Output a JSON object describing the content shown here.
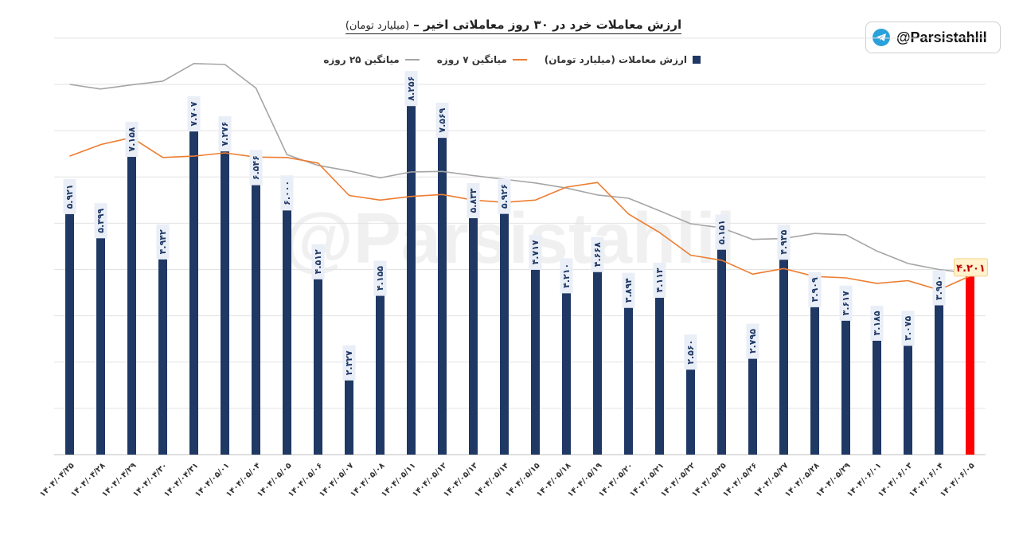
{
  "title": {
    "main": "ارزش معاملات خرد در ۳۰ روز معاملاتی اخیر",
    "unit": "(میلیارد تومان)"
  },
  "brand": {
    "handle": "@Parsistahlil",
    "icon": "telegram-icon",
    "watermark": "@Parsistahlil"
  },
  "legend": {
    "value": "ارزش معاملات (میلیارد تومان)",
    "ma7": "میانگین ۷ روزه",
    "ma25": "میانگین ۲۵ روزه"
  },
  "colors": {
    "bar": "#1f3864",
    "last_bar": "#ff0000",
    "ma7": "#ed7d31",
    "ma25": "#a5a5a5"
  },
  "chart_data": {
    "type": "bar",
    "title": "ارزش معاملات خرد در ۳۰ روز معاملاتی اخیر - (میلیارد تومان)",
    "ylim": [
      0,
      8
    ],
    "grid": true,
    "legend_position": "top-center",
    "categories": [
      "۱۴۰۴/۰۴/۲۵",
      "۱۴۰۴/۰۴/۲۸",
      "۱۴۰۴/۰۴/۲۹",
      "۱۴۰۴/۰۴/۳۰",
      "۱۴۰۴/۰۴/۳۱",
      "۱۴۰۴/۰۵/۰۱",
      "۱۴۰۴/۰۵/۰۴",
      "۱۴۰۴/۰۵/۰۵",
      "۱۴۰۴/۰۵/۰۶",
      "۱۴۰۴/۰۵/۰۷",
      "۱۴۰۴/۰۵/۰۸",
      "۱۴۰۴/۰۵/۱۱",
      "۱۴۰۴/۰۵/۱۲",
      "۱۴۰۴/۰۵/۱۳",
      "۱۴۰۴/۰۵/۱۴",
      "۱۴۰۴/۰۵/۱۵",
      "۱۴۰۴/۰۵/۱۸",
      "۱۴۰۴/۰۵/۱۹",
      "۱۴۰۴/۰۵/۲۰",
      "۱۴۰۴/۰۵/۲۱",
      "۱۴۰۴/۰۵/۲۲",
      "۱۴۰۴/۰۵/۲۵",
      "۱۴۰۴/۰۵/۲۶",
      "۱۴۰۴/۰۵/۲۷",
      "۱۴۰۴/۰۵/۲۸",
      "۱۴۰۴/۰۵/۲۹",
      "۱۴۰۴/۰۶/۰۱",
      "۱۴۰۴/۰۶/۰۳",
      "۱۴۰۴/۰۶/۰۴",
      "۱۴۰۴/۰۶/۰۵"
    ],
    "series": [
      {
        "name": "ارزش معاملات (میلیارد تومان)",
        "kind": "bar",
        "values": [
          5.921,
          5.399,
          7.158,
          4.942,
          7.707,
          7.276,
          6.546,
          6.0,
          4.512,
          2.327,
          4.155,
          8.256,
          7.569,
          5.833,
          5.926,
          4.717,
          4.21,
          4.668,
          3.894,
          4.113,
          2.56,
          5.151,
          2.795,
          4.935,
          3.909,
          3.617,
          3.185,
          3.075,
          3.95,
          4.201
        ],
        "labels": [
          "۵.۹۲۱",
          "۵.۳۹۹",
          "۷.۱۵۸",
          "۴.۹۴۲",
          "۷.۷۰۷",
          "۷.۲۷۶",
          "۶.۵۴۶",
          "۶.۰۰۰",
          "۴.۵۱۲",
          "۲.۳۲۷",
          "۴.۱۵۵",
          "۸.۲۵۶",
          "۷.۵۶۹",
          "۵.۸۳۳",
          "۵.۹۲۶",
          "۴.۷۱۷",
          "۴.۲۱۰",
          "۴.۶۶۸",
          "۳.۸۹۴",
          "۴.۱۱۳",
          "۲.۵۶۰",
          "۵.۱۵۱",
          "۲.۷۹۵",
          "۴.۹۳۵",
          "۳.۹۰۹",
          "۳.۶۱۷",
          "۳.۱۸۵",
          "۳.۰۷۵",
          "۳.۹۵۰",
          "۴.۲۰۱"
        ]
      },
      {
        "name": "میانگین ۷ روزه",
        "kind": "line",
        "values": [
          6.45,
          6.7,
          6.85,
          6.42,
          6.45,
          6.52,
          6.43,
          6.42,
          6.3,
          5.6,
          5.5,
          5.58,
          5.62,
          5.5,
          5.45,
          5.5,
          5.78,
          5.88,
          5.2,
          4.8,
          4.31,
          4.2,
          3.9,
          4.02,
          3.85,
          3.82,
          3.7,
          3.76,
          3.56,
          3.86
        ]
      },
      {
        "name": "میانگین ۲۵ روزه",
        "kind": "line",
        "values": [
          8.0,
          7.9,
          7.99,
          8.07,
          8.45,
          8.43,
          7.92,
          6.48,
          6.25,
          6.13,
          5.98,
          6.11,
          6.12,
          6.03,
          5.95,
          5.87,
          5.76,
          5.61,
          5.54,
          5.27,
          4.99,
          4.9,
          4.65,
          4.67,
          4.78,
          4.75,
          4.4,
          4.13,
          4.0,
          3.92
        ]
      }
    ]
  }
}
